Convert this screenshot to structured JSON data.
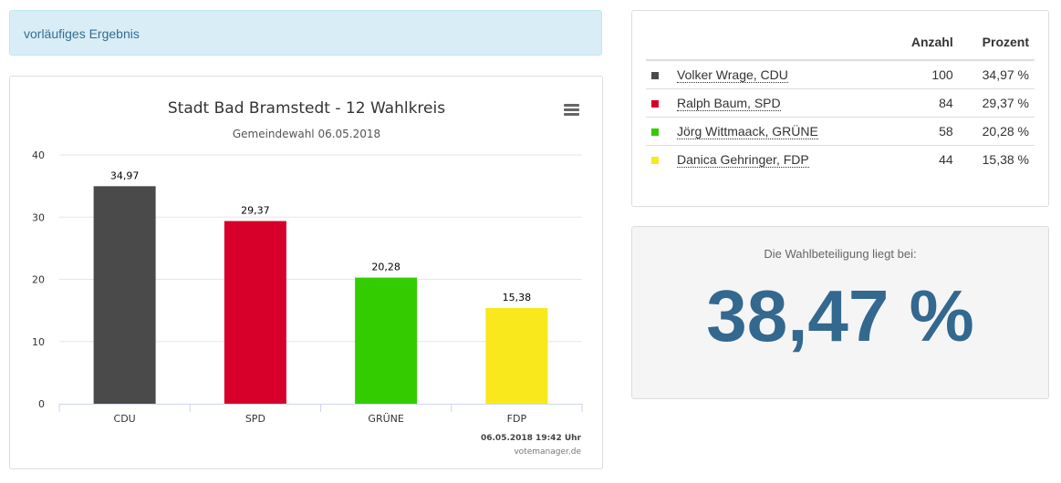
{
  "status": {
    "text": "vorläufiges Ergebnis"
  },
  "chart": {
    "menu_icon": "hamburger-menu-icon",
    "timestamp": "06.05.2018 19:42 Uhr",
    "credit": "votemanager.de"
  },
  "chart_data": {
    "type": "bar",
    "title": "Stadt Bad Bramstedt - 12 Wahlkreis",
    "subtitle": "Gemeindewahl 06.05.2018",
    "categories": [
      "CDU",
      "SPD",
      "GRÜNE",
      "FDP"
    ],
    "values": [
      34.97,
      29.37,
      20.28,
      15.38
    ],
    "value_labels": [
      "34,97",
      "29,37",
      "20,28",
      "15,38"
    ],
    "colors": [
      "#4a4a4a",
      "#d7002b",
      "#33cc00",
      "#f8e81c"
    ],
    "ylim": [
      0,
      40
    ],
    "yticks": [
      0,
      10,
      20,
      30,
      40
    ],
    "xlabel": "",
    "ylabel": "",
    "grid": true,
    "legend": false
  },
  "results": {
    "headers": {
      "name": "",
      "count": "Anzahl",
      "percent": "Prozent"
    },
    "rows": [
      {
        "name": "Volker Wrage, CDU",
        "count": "100",
        "percent": "34,97 %",
        "color": "#4a4a4a"
      },
      {
        "name": "Ralph Baum, SPD",
        "count": "84",
        "percent": "29,37 %",
        "color": "#d7002b"
      },
      {
        "name": "Jörg Wittmaack, GRÜNE",
        "count": "58",
        "percent": "20,28 %",
        "color": "#33cc00"
      },
      {
        "name": "Danica Gehringer, FDP",
        "count": "44",
        "percent": "15,38 %",
        "color": "#f8e81c"
      }
    ]
  },
  "turnout": {
    "label": "Die Wahlbeteiligung liegt bei:",
    "value": "38,47 %"
  }
}
